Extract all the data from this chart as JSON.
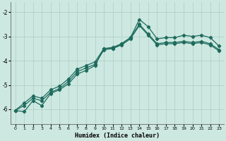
{
  "xlabel": "Humidex (Indice chaleur)",
  "xlim": [
    -0.5,
    23.5
  ],
  "ylim": [
    -6.6,
    -1.6
  ],
  "yticks": [
    -6,
    -5,
    -4,
    -3,
    -2
  ],
  "xticks": [
    0,
    1,
    2,
    3,
    4,
    5,
    6,
    7,
    8,
    9,
    10,
    11,
    12,
    13,
    14,
    15,
    16,
    17,
    18,
    19,
    20,
    21,
    22,
    23
  ],
  "bg_color": "#cde8e0",
  "grid_color": "#aacec6",
  "line_color": "#1e6b5e",
  "line1_x": [
    0,
    1,
    2,
    3,
    4,
    5,
    6,
    7,
    8,
    9,
    10,
    11,
    12,
    13,
    14,
    15,
    16,
    17,
    18,
    19,
    20,
    21,
    22,
    23
  ],
  "line1_y": [
    -6.05,
    -6.1,
    -5.65,
    -5.85,
    -5.35,
    -5.2,
    -4.95,
    -4.55,
    -4.4,
    -4.2,
    -3.5,
    -3.5,
    -3.3,
    -3.05,
    -2.3,
    -2.6,
    -3.1,
    -3.05,
    -3.05,
    -2.95,
    -3.0,
    -2.95,
    -3.05,
    -3.4
  ],
  "line2_x": [
    0,
    1,
    2,
    3,
    4,
    5,
    6,
    7,
    8,
    9,
    10,
    11,
    12,
    13,
    14,
    15,
    16,
    17,
    18,
    19,
    20,
    21,
    22,
    23
  ],
  "line2_y": [
    -6.05,
    -5.85,
    -5.55,
    -5.65,
    -5.3,
    -5.15,
    -4.85,
    -4.45,
    -4.3,
    -4.15,
    -3.55,
    -3.5,
    -3.35,
    -3.1,
    -2.55,
    -2.95,
    -3.35,
    -3.3,
    -3.3,
    -3.25,
    -3.3,
    -3.25,
    -3.35,
    -3.6
  ],
  "line3_x": [
    0,
    1,
    2,
    3,
    4,
    5,
    6,
    7,
    8,
    9,
    10,
    11,
    12,
    13,
    14,
    15,
    16,
    17,
    18,
    19,
    20,
    21,
    22,
    23
  ],
  "line3_y": [
    -6.05,
    -5.75,
    -5.45,
    -5.55,
    -5.2,
    -5.05,
    -4.75,
    -4.35,
    -4.2,
    -4.05,
    -3.5,
    -3.45,
    -3.3,
    -3.05,
    -2.5,
    -2.9,
    -3.3,
    -3.25,
    -3.25,
    -3.2,
    -3.25,
    -3.2,
    -3.3,
    -3.55
  ]
}
